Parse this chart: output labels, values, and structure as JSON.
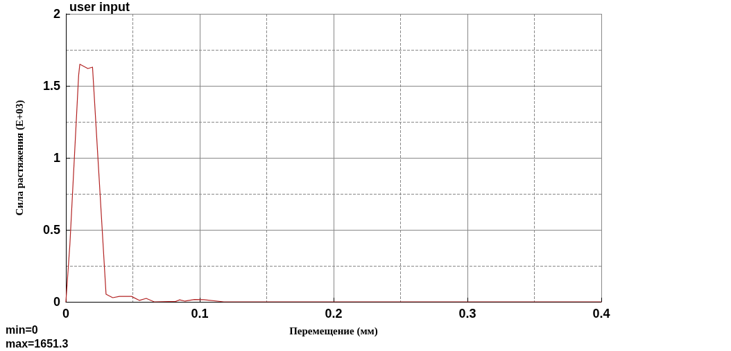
{
  "chart_data": {
    "type": "line",
    "title": "user input",
    "xlabel": "Перемещение (мм)",
    "ylabel": "Сила растяжения (E+03)",
    "annotations": [
      "min=0",
      "max=1651.3"
    ],
    "series": [
      {
        "color": "#b22222",
        "x": [
          0,
          0.003,
          0.0095,
          0.0104,
          0.0164,
          0.0199,
          0.03,
          0.035,
          0.04,
          0.049,
          0.055,
          0.06,
          0.066,
          0.082,
          0.085,
          0.089,
          0.096,
          0.103,
          0.118,
          0.2,
          0.3,
          0.4
        ],
        "values": [
          0,
          0.4,
          1.57,
          1.65,
          1.62,
          1.63,
          0.053,
          0.029,
          0.038,
          0.038,
          0.01,
          0.024,
          0,
          0.003,
          0.014,
          0.005,
          0.016,
          0.015,
          0,
          0,
          0,
          0
        ]
      }
    ],
    "xlim": [
      0,
      0.4
    ],
    "xticks": [
      0,
      0.1,
      0.2,
      0.3,
      0.4
    ],
    "ylim": [
      0,
      2
    ],
    "yticks": [
      0,
      0.5,
      1,
      1.5,
      2
    ],
    "grid": true,
    "marker": "none",
    "line_style": "solid"
  }
}
